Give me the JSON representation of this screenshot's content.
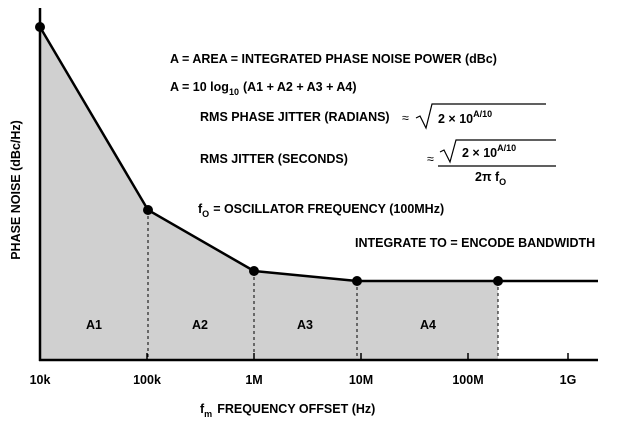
{
  "axes": {
    "y_label": "PHASE NOISE (dBc/Hz)",
    "x_label": {
      "main": "f",
      "sub": "m",
      "rest": "FREQUENCY OFFSET (Hz)"
    },
    "x_ticks": [
      "10k",
      "100k",
      "1M",
      "10M",
      "100M",
      "1G"
    ]
  },
  "areas": [
    "A1",
    "A2",
    "A3",
    "A4"
  ],
  "notes": {
    "area_def": "A = AREA = INTEGRATED PHASE NOISE POWER (dBc)",
    "area_formula": {
      "start": "A = 10 log",
      "sub": "10",
      "rest": "(A1 + A2 + A3 + A4)"
    },
    "phase_jitter": {
      "label": "RMS PHASE JITTER (RADIANS)",
      "approx": "≈",
      "base": "2 × 10",
      "exp": "A/10"
    },
    "jitter": {
      "label": "RMS JITTER (SECONDS)",
      "approx": "≈",
      "base": "2 × 10",
      "exp": "A/10",
      "den_main": "2π f",
      "den_sub": "O"
    },
    "osc": {
      "main": "f",
      "sub": "O",
      "rest": "= OSCILLATOR FREQUENCY (100MHz)"
    },
    "integrate": "INTEGRATE TO = ENCODE BANDWIDTH"
  }
}
